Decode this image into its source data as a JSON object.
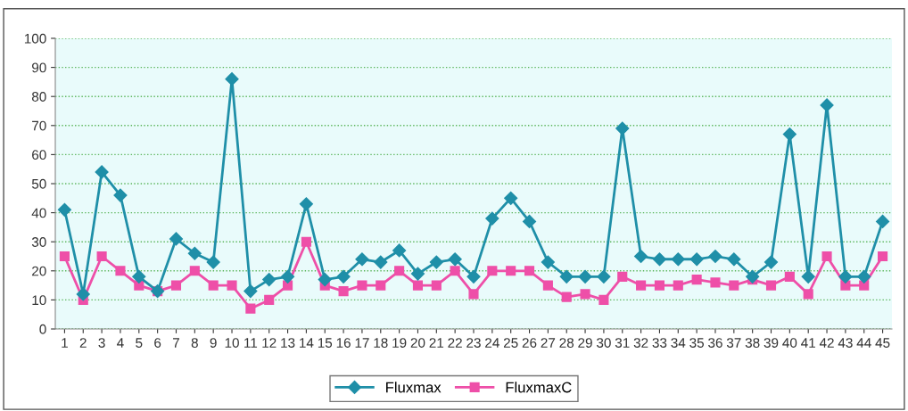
{
  "chart_data": {
    "type": "line",
    "categories": [
      "1",
      "2",
      "3",
      "4",
      "5",
      "6",
      "7",
      "8",
      "9",
      "10",
      "11",
      "12",
      "13",
      "14",
      "15",
      "16",
      "17",
      "18",
      "19",
      "20",
      "21",
      "22",
      "23",
      "24",
      "25",
      "26",
      "27",
      "28",
      "29",
      "30",
      "31",
      "32",
      "33",
      "34",
      "35",
      "36",
      "37",
      "38",
      "39",
      "40",
      "41",
      "42",
      "43",
      "44",
      "45"
    ],
    "series": [
      {
        "name": "Fluxmax",
        "color": "#1f8fa8",
        "marker": "diamond",
        "values": [
          41,
          12,
          54,
          46,
          18,
          13,
          31,
          26,
          23,
          86,
          13,
          17,
          18,
          43,
          17,
          18,
          24,
          23,
          27,
          19,
          23,
          24,
          18,
          38,
          45,
          37,
          23,
          18,
          18,
          18,
          69,
          25,
          24,
          24,
          24,
          25,
          24,
          18,
          23,
          67,
          18,
          77,
          18,
          18,
          37
        ]
      },
      {
        "name": "FluxmaxC",
        "color": "#ee4fa8",
        "marker": "square",
        "values": [
          25,
          10,
          25,
          20,
          15,
          13,
          15,
          20,
          15,
          15,
          7,
          10,
          15,
          30,
          15,
          13,
          15,
          15,
          20,
          15,
          15,
          20,
          12,
          20,
          20,
          20,
          15,
          11,
          12,
          10,
          18,
          15,
          15,
          15,
          17,
          16,
          15,
          17,
          15,
          18,
          12,
          25,
          15,
          15,
          25
        ]
      }
    ],
    "ylim": [
      0,
      100
    ],
    "yticks": [
      0,
      10,
      20,
      30,
      40,
      50,
      60,
      70,
      80,
      90,
      100
    ],
    "grid": "y",
    "legend": "bottom",
    "line_style": "solid"
  }
}
